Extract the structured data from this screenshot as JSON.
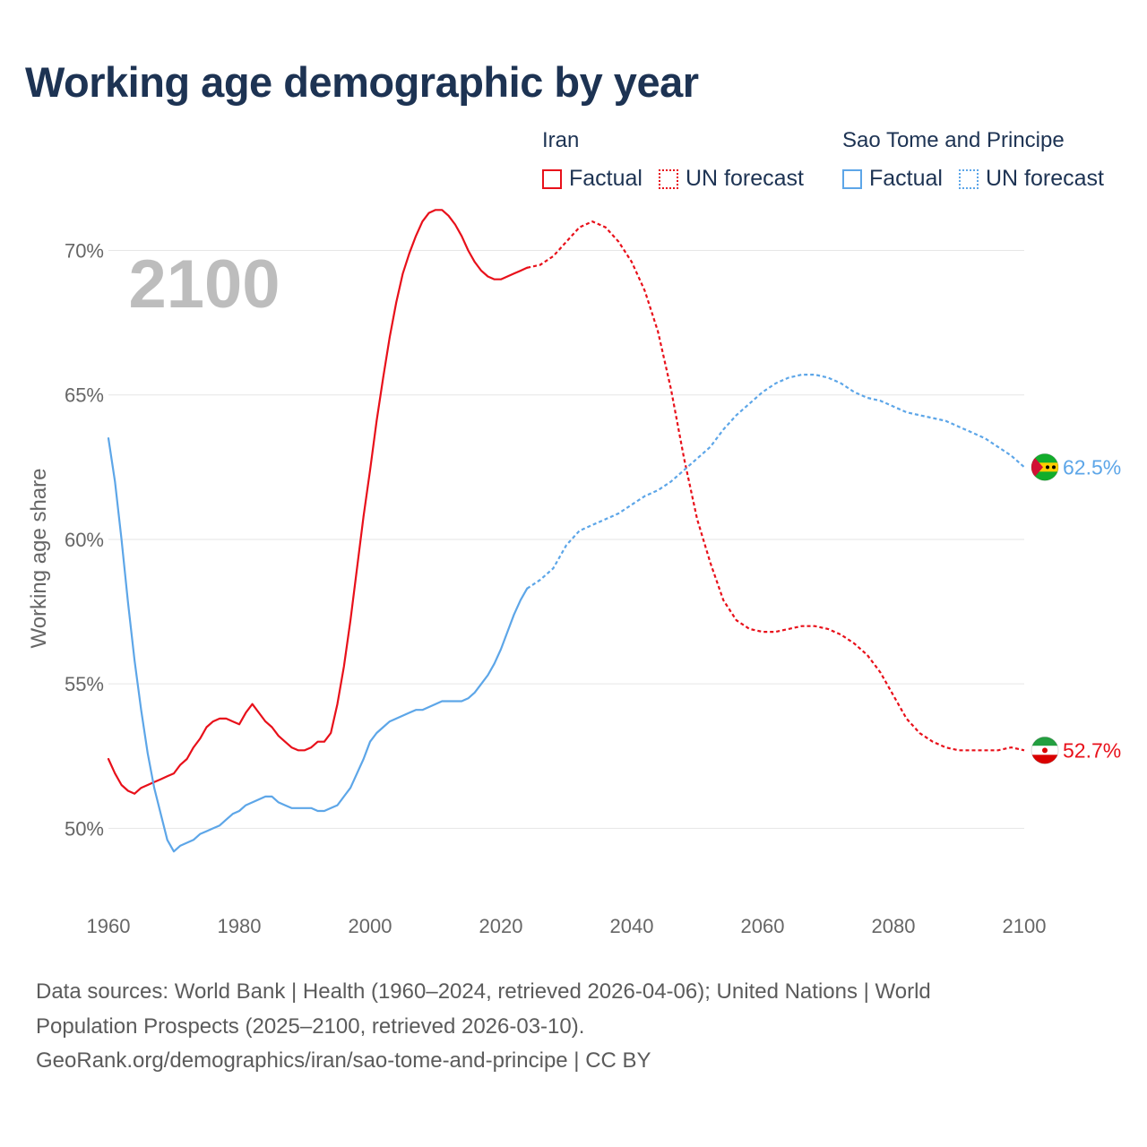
{
  "title": "Working age demographic by year",
  "legend": {
    "groups": [
      {
        "name": "Iran",
        "color": "#e8101a",
        "factual_label": "Factual",
        "forecast_label": "UN forecast"
      },
      {
        "name": "Sao Tome and Principe",
        "color": "#5da6e8",
        "factual_label": "Factual",
        "forecast_label": "UN forecast"
      }
    ]
  },
  "year_marker": "2100",
  "source": {
    "line1": "Data sources: World Bank | Health (1960–2024, retrieved 2026-04-06); United Nations | World",
    "line2": "Population Prospects (2025–2100, retrieved 2026-03-10).",
    "line3": "GeoRank.org/demographics/iran/sao-tome-and-principe | CC BY"
  },
  "chart_data": {
    "type": "line",
    "title": "Working age demographic by year",
    "ylabel": "Working age share",
    "xlabel": "",
    "xlim": [
      1960,
      2100
    ],
    "ylim": [
      47.5,
      72
    ],
    "x_ticks": [
      1960,
      1980,
      2000,
      2020,
      2040,
      2060,
      2080,
      2100
    ],
    "x_tick_labels": [
      "1960",
      "1980",
      "2000",
      "2020",
      "2040",
      "2060",
      "2080",
      "2100"
    ],
    "y_ticks": [
      50,
      55,
      60,
      65,
      70
    ],
    "y_tick_labels": [
      "50%",
      "55%",
      "60%",
      "65%",
      "70%"
    ],
    "grid": true,
    "series": [
      {
        "name": "Iran",
        "color": "#e8101a",
        "end_label": "52.7%",
        "factual": {
          "x": [
            1960,
            1961,
            1962,
            1963,
            1964,
            1965,
            1966,
            1967,
            1968,
            1969,
            1970,
            1971,
            1972,
            1973,
            1974,
            1975,
            1976,
            1977,
            1978,
            1979,
            1980,
            1981,
            1982,
            1983,
            1984,
            1985,
            1986,
            1987,
            1988,
            1989,
            1990,
            1991,
            1992,
            1993,
            1994,
            1995,
            1996,
            1997,
            1998,
            1999,
            2000,
            2001,
            2002,
            2003,
            2004,
            2005,
            2006,
            2007,
            2008,
            2009,
            2010,
            2011,
            2012,
            2013,
            2014,
            2015,
            2016,
            2017,
            2018,
            2019,
            2020,
            2021,
            2022,
            2023,
            2024
          ],
          "y": [
            52.4,
            51.9,
            51.5,
            51.3,
            51.2,
            51.4,
            51.5,
            51.6,
            51.7,
            51.8,
            51.9,
            52.2,
            52.4,
            52.8,
            53.1,
            53.5,
            53.7,
            53.8,
            53.8,
            53.7,
            53.6,
            54.0,
            54.3,
            54.0,
            53.7,
            53.5,
            53.2,
            53.0,
            52.8,
            52.7,
            52.7,
            52.8,
            53.0,
            53.0,
            53.3,
            54.3,
            55.6,
            57.2,
            59.0,
            60.8,
            62.4,
            64.1,
            65.6,
            67.0,
            68.2,
            69.2,
            69.9,
            70.5,
            71.0,
            71.3,
            71.4,
            71.4,
            71.2,
            70.9,
            70.5,
            70.0,
            69.6,
            69.3,
            69.1,
            69.0,
            69.0,
            69.1,
            69.2,
            69.3,
            69.4
          ]
        },
        "forecast": {
          "x": [
            2024,
            2026,
            2028,
            2030,
            2032,
            2034,
            2036,
            2038,
            2040,
            2042,
            2044,
            2046,
            2048,
            2050,
            2052,
            2054,
            2056,
            2058,
            2060,
            2062,
            2064,
            2066,
            2068,
            2070,
            2072,
            2074,
            2076,
            2078,
            2080,
            2082,
            2084,
            2086,
            2088,
            2090,
            2092,
            2094,
            2096,
            2098,
            2100
          ],
          "y": [
            69.4,
            69.5,
            69.8,
            70.3,
            70.8,
            71.0,
            70.8,
            70.3,
            69.6,
            68.6,
            67.2,
            65.2,
            62.8,
            60.7,
            59.2,
            57.9,
            57.2,
            56.9,
            56.8,
            56.8,
            56.9,
            57.0,
            57.0,
            56.9,
            56.7,
            56.4,
            56.0,
            55.4,
            54.6,
            53.8,
            53.3,
            53.0,
            52.8,
            52.7,
            52.7,
            52.7,
            52.7,
            52.8,
            52.7
          ]
        }
      },
      {
        "name": "Sao Tome and Principe",
        "color": "#5da6e8",
        "end_label": "62.5%",
        "factual": {
          "x": [
            1960,
            1961,
            1962,
            1963,
            1964,
            1965,
            1966,
            1967,
            1968,
            1969,
            1970,
            1971,
            1972,
            1973,
            1974,
            1975,
            1976,
            1977,
            1978,
            1979,
            1980,
            1981,
            1982,
            1983,
            1984,
            1985,
            1986,
            1987,
            1988,
            1989,
            1990,
            1991,
            1992,
            1993,
            1994,
            1995,
            1996,
            1997,
            1998,
            1999,
            2000,
            2001,
            2002,
            2003,
            2004,
            2005,
            2006,
            2007,
            2008,
            2009,
            2010,
            2011,
            2012,
            2013,
            2014,
            2015,
            2016,
            2017,
            2018,
            2019,
            2020,
            2021,
            2022,
            2023,
            2024
          ],
          "y": [
            63.5,
            62.0,
            60.0,
            57.8,
            55.8,
            54.1,
            52.6,
            51.4,
            50.5,
            49.6,
            49.2,
            49.4,
            49.5,
            49.6,
            49.8,
            49.9,
            50.0,
            50.1,
            50.3,
            50.5,
            50.6,
            50.8,
            50.9,
            51.0,
            51.1,
            51.1,
            50.9,
            50.8,
            50.7,
            50.7,
            50.7,
            50.7,
            50.6,
            50.6,
            50.7,
            50.8,
            51.1,
            51.4,
            51.9,
            52.4,
            53.0,
            53.3,
            53.5,
            53.7,
            53.8,
            53.9,
            54.0,
            54.1,
            54.1,
            54.2,
            54.3,
            54.4,
            54.4,
            54.4,
            54.4,
            54.5,
            54.7,
            55.0,
            55.3,
            55.7,
            56.2,
            56.8,
            57.4,
            57.9,
            58.3
          ]
        },
        "forecast": {
          "x": [
            2024,
            2026,
            2028,
            2030,
            2032,
            2034,
            2036,
            2038,
            2040,
            2042,
            2044,
            2046,
            2048,
            2050,
            2052,
            2054,
            2056,
            2058,
            2060,
            2062,
            2064,
            2066,
            2068,
            2070,
            2072,
            2074,
            2076,
            2078,
            2080,
            2082,
            2084,
            2086,
            2088,
            2090,
            2092,
            2094,
            2096,
            2098,
            2100
          ],
          "y": [
            58.3,
            58.6,
            59.0,
            59.8,
            60.3,
            60.5,
            60.7,
            60.9,
            61.2,
            61.5,
            61.7,
            62.0,
            62.4,
            62.8,
            63.2,
            63.8,
            64.3,
            64.7,
            65.1,
            65.4,
            65.6,
            65.7,
            65.7,
            65.6,
            65.4,
            65.1,
            64.9,
            64.8,
            64.6,
            64.4,
            64.3,
            64.2,
            64.1,
            63.9,
            63.7,
            63.5,
            63.2,
            62.9,
            62.5
          ]
        }
      }
    ]
  }
}
